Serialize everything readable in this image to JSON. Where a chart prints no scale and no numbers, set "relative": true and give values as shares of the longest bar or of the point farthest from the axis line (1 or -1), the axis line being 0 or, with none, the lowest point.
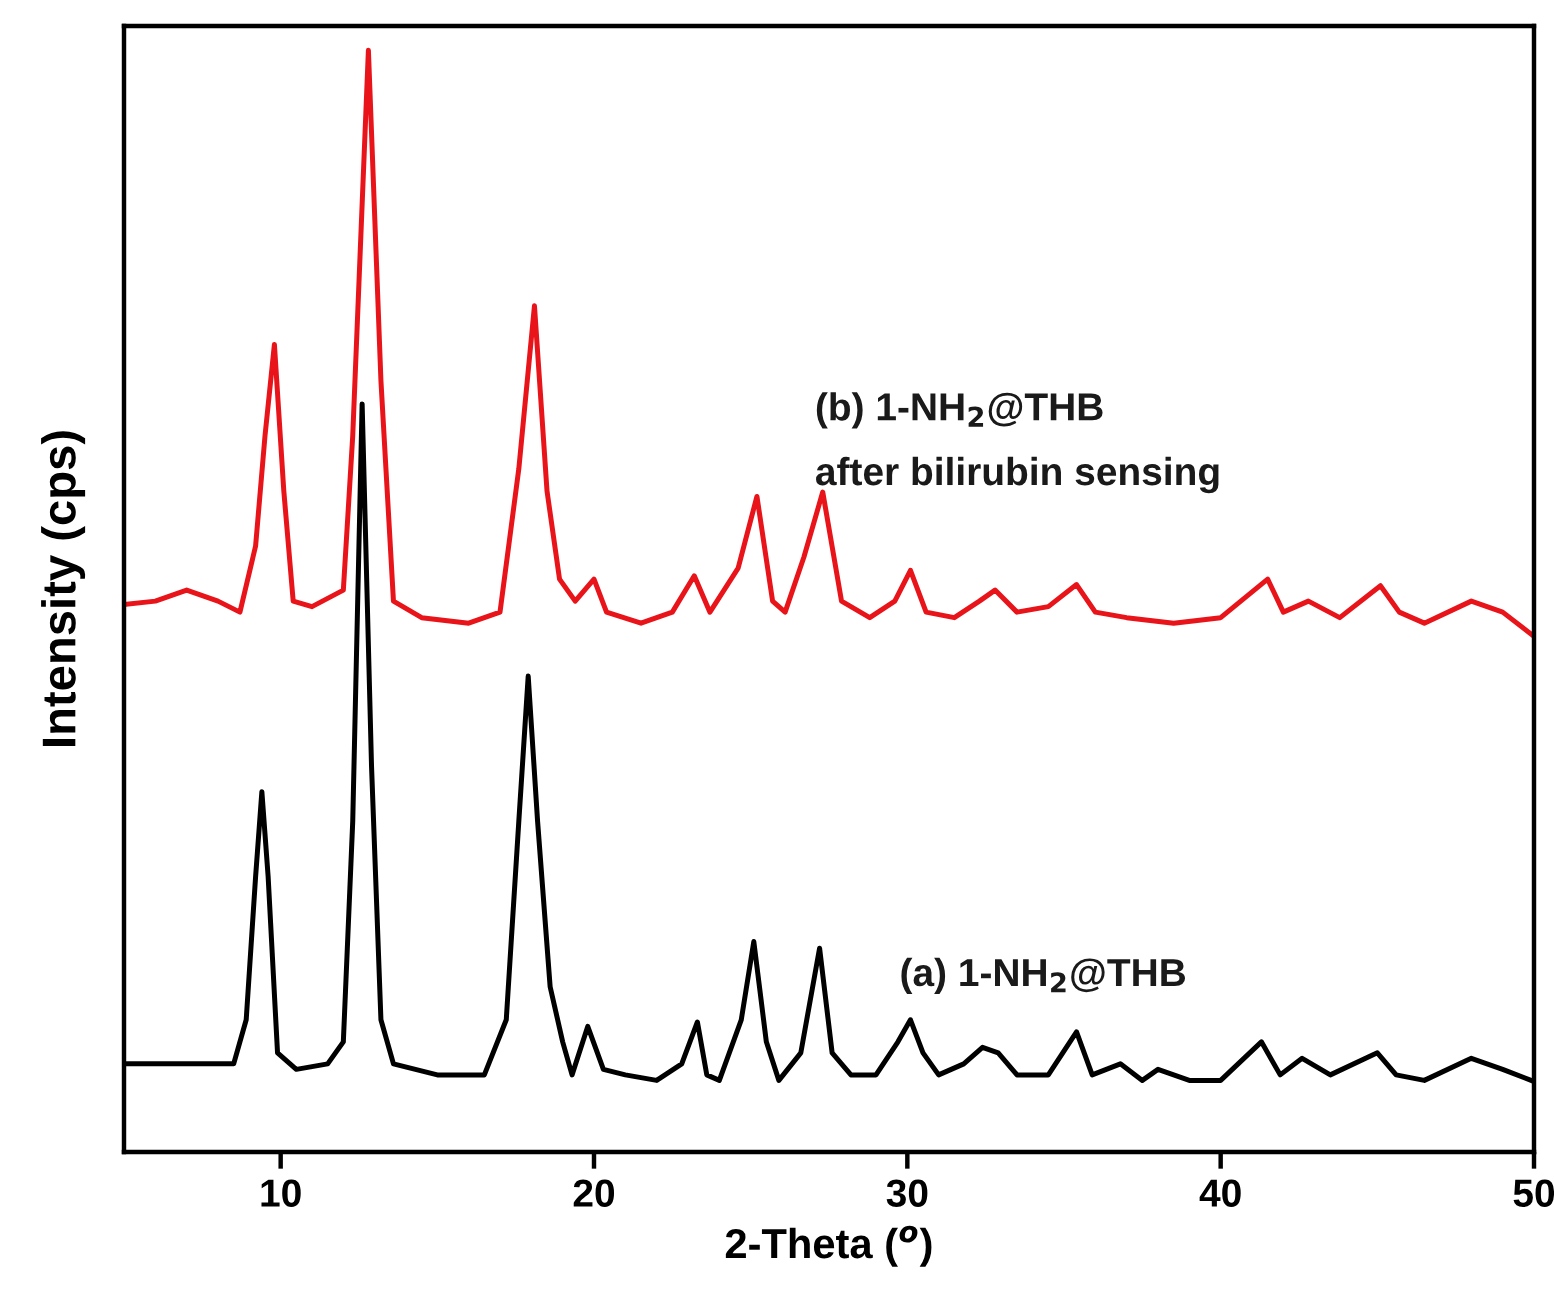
{
  "chart_data": {
    "type": "line",
    "relative": true,
    "xlabel": "2-Theta ($^{o}$)",
    "ylabel": "Intensity (cps)",
    "xlim": [
      5,
      50
    ],
    "xticks": [
      10,
      20,
      30,
      40,
      50
    ],
    "tick_labels": "x",
    "grid": false,
    "legend": false,
    "marker": "none",
    "line_style": "solid",
    "series": [
      {
        "name": "(b) 1-NH$_{2}$@THB\nafter bilirubin sensing",
        "color": "#e8141a",
        "x": [
          5,
          6,
          7,
          8,
          8.7,
          9.2,
          9.5,
          9.8,
          10.1,
          10.4,
          11,
          12,
          12.3,
          12.8,
          13.2,
          13.6,
          14.5,
          16,
          17,
          17.6,
          18.1,
          18.5,
          18.9,
          19.4,
          20.0,
          20.4,
          21.5,
          22.5,
          23.2,
          23.7,
          24.6,
          25.2,
          25.7,
          26.1,
          26.7,
          27.3,
          27.9,
          28.8,
          29.6,
          30.1,
          30.6,
          31.5,
          32.3,
          32.8,
          33.5,
          34.5,
          35.4,
          36,
          37,
          38.5,
          40,
          41.5,
          42,
          42.8,
          43.8,
          45.1,
          45.7,
          46.5,
          48,
          49,
          50
        ],
        "values": [
          0.497,
          0.5,
          0.51,
          0.5,
          0.49,
          0.55,
          0.65,
          0.733,
          0.6,
          0.5,
          0.495,
          0.51,
          0.65,
          1.0,
          0.7,
          0.5,
          0.485,
          0.48,
          0.49,
          0.62,
          0.768,
          0.6,
          0.52,
          0.5,
          0.52,
          0.49,
          0.48,
          0.49,
          0.523,
          0.49,
          0.53,
          0.595,
          0.5,
          0.49,
          0.54,
          0.599,
          0.5,
          0.485,
          0.5,
          0.528,
          0.49,
          0.485,
          0.5,
          0.51,
          0.49,
          0.495,
          0.515,
          0.49,
          0.485,
          0.48,
          0.485,
          0.52,
          0.49,
          0.5,
          0.485,
          0.514,
          0.49,
          0.48,
          0.5,
          0.49,
          0.468
        ]
      },
      {
        "name": "(a) 1-NH$_{2}$@THB",
        "color": "#000000",
        "x": [
          5,
          8.5,
          8.9,
          9.2,
          9.4,
          9.6,
          9.9,
          10.5,
          11.5,
          12.0,
          12.3,
          12.6,
          12.9,
          13.2,
          13.6,
          15,
          16.5,
          17.2,
          17.6,
          17.9,
          18.2,
          18.6,
          19.0,
          19.3,
          19.8,
          20.3,
          21,
          22,
          22.8,
          23.3,
          23.6,
          24,
          24.7,
          25.1,
          25.5,
          25.9,
          26.6,
          27.2,
          27.6,
          28.2,
          29,
          29.7,
          30.1,
          30.5,
          31,
          31.8,
          32.4,
          32.9,
          33.5,
          34.5,
          35.4,
          35.9,
          36.8,
          37.5,
          38,
          39,
          40,
          41.3,
          41.9,
          42.6,
          43.5,
          45,
          45.6,
          46.5,
          48,
          49,
          50
        ],
        "values": [
          0.08,
          0.08,
          0.12,
          0.25,
          0.327,
          0.25,
          0.09,
          0.075,
          0.08,
          0.1,
          0.3,
          0.679,
          0.35,
          0.12,
          0.08,
          0.07,
          0.07,
          0.12,
          0.3,
          0.432,
          0.3,
          0.15,
          0.1,
          0.07,
          0.114,
          0.075,
          0.07,
          0.065,
          0.08,
          0.118,
          0.07,
          0.065,
          0.12,
          0.191,
          0.1,
          0.065,
          0.09,
          0.185,
          0.09,
          0.07,
          0.07,
          0.1,
          0.12,
          0.09,
          0.07,
          0.08,
          0.095,
          0.09,
          0.07,
          0.07,
          0.109,
          0.07,
          0.08,
          0.065,
          0.075,
          0.065,
          0.065,
          0.1,
          0.07,
          0.085,
          0.07,
          0.09,
          0.07,
          0.065,
          0.085,
          0.075,
          0.064
        ]
      }
    ]
  }
}
